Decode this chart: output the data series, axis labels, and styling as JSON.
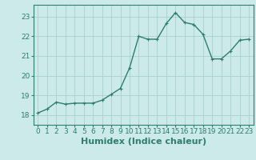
{
  "x": [
    0,
    1,
    2,
    3,
    4,
    5,
    6,
    7,
    8,
    9,
    10,
    11,
    12,
    13,
    14,
    15,
    16,
    17,
    18,
    19,
    20,
    21,
    22,
    23
  ],
  "y": [
    18.1,
    18.3,
    18.65,
    18.55,
    18.6,
    18.6,
    18.6,
    18.75,
    19.05,
    19.35,
    20.4,
    22.0,
    21.85,
    21.85,
    22.65,
    23.2,
    22.7,
    22.6,
    22.1,
    20.85,
    20.85,
    21.25,
    21.8,
    21.85
  ],
  "line_color": "#2e7d6e",
  "marker": "+",
  "marker_size": 3,
  "bg_color": "#cceaea",
  "grid_color": "#aacece",
  "tick_color": "#2e7d6e",
  "xlabel": "Humidex (Indice chaleur)",
  "xlabel_fontsize": 8,
  "ylim": [
    17.5,
    23.6
  ],
  "xlim": [
    -0.5,
    23.5
  ],
  "yticks": [
    18,
    19,
    20,
    21,
    22,
    23
  ],
  "xticks": [
    0,
    1,
    2,
    3,
    4,
    5,
    6,
    7,
    8,
    9,
    10,
    11,
    12,
    13,
    14,
    15,
    16,
    17,
    18,
    19,
    20,
    21,
    22,
    23
  ],
  "tick_fontsize": 6.5,
  "line_width": 1.0
}
